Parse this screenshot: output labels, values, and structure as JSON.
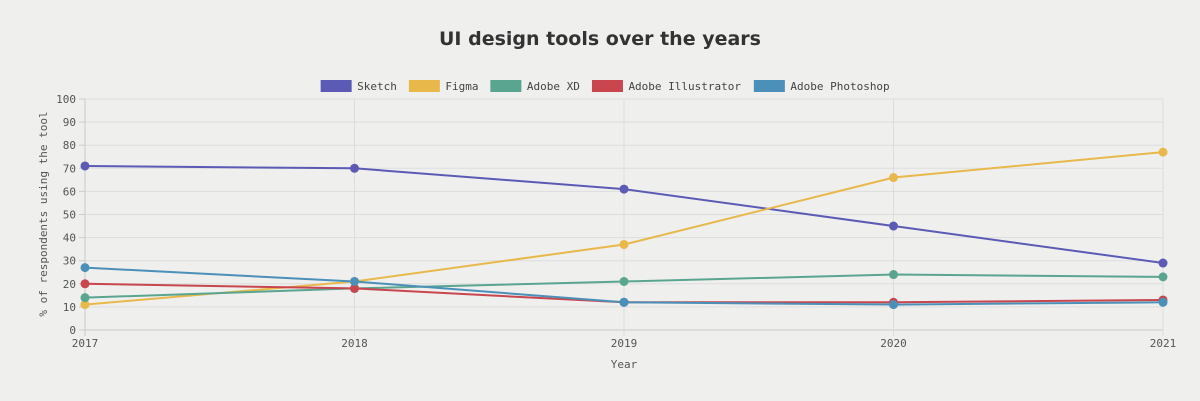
{
  "chart_data": {
    "type": "line",
    "title": "UI design tools over the years",
    "xlabel": "Year",
    "ylabel": "% of respondents using the tool",
    "x": [
      "2017",
      "2018",
      "2019",
      "2020",
      "2021"
    ],
    "ylim": [
      0,
      100
    ],
    "yticks": [
      0,
      10,
      20,
      30,
      40,
      50,
      60,
      70,
      80,
      90,
      100
    ],
    "grid": true,
    "legend_position": "top",
    "series": [
      {
        "name": "Sketch",
        "color": "#5b5bb5",
        "values": [
          71,
          70,
          61,
          45,
          29
        ]
      },
      {
        "name": "Figma",
        "color": "#e9b84a",
        "values": [
          11,
          21,
          37,
          66,
          77
        ]
      },
      {
        "name": "Adobe XD",
        "color": "#5aa590",
        "values": [
          14,
          18,
          21,
          24,
          23
        ]
      },
      {
        "name": "Adobe Illustrator",
        "color": "#c9464f",
        "values": [
          20,
          18,
          12,
          12,
          13
        ]
      },
      {
        "name": "Adobe Photoshop",
        "color": "#4b90b8",
        "values": [
          27,
          21,
          12,
          11,
          12
        ]
      }
    ]
  }
}
